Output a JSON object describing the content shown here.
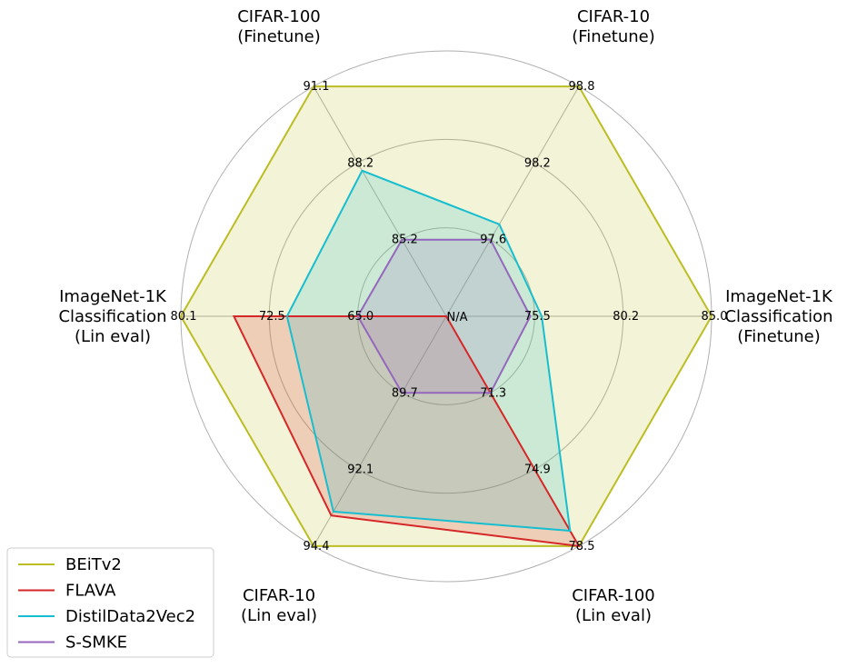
{
  "chart_data": {
    "type": "radar",
    "axes": [
      {
        "label": [
          "ImageNet-1K",
          "Classification",
          "(Finetune)"
        ],
        "ticks": [
          "75.5",
          "80.2",
          "85.0"
        ]
      },
      {
        "label": [
          "CIFAR-10",
          "(Finetune)"
        ],
        "ticks": [
          "97.6",
          "98.2",
          "98.8"
        ]
      },
      {
        "label": [
          "CIFAR-100",
          "(Finetune)"
        ],
        "ticks": [
          "85.2",
          "88.2",
          "91.1"
        ]
      },
      {
        "label": [
          "ImageNet-1K",
          "Classification",
          "(Lin eval)"
        ],
        "ticks": [
          "65.0",
          "72.5",
          "80.1"
        ]
      },
      {
        "label": [
          "CIFAR-10",
          "(Lin eval)"
        ],
        "ticks": [
          "89.7",
          "92.1",
          "94.4"
        ]
      },
      {
        "label": [
          "CIFAR-100",
          "(Lin eval)"
        ],
        "ticks": [
          "71.3",
          "74.9",
          "78.5"
        ]
      }
    ],
    "center_label": "N/A",
    "scale_radii": [
      1,
      2,
      3
    ],
    "series": [
      {
        "name": "BEiTv2",
        "color": "#bcbd22",
        "values": [
          3.0,
          3.0,
          3.0,
          3.0,
          3.0,
          3.0
        ]
      },
      {
        "name": "FLAVA",
        "color": "#d62728",
        "values": [
          0.0,
          0.0,
          0.0,
          2.4,
          2.6,
          3.0
        ]
      },
      {
        "name": "DistilData2Vec2",
        "color": "#17becf",
        "values": [
          1.08,
          1.2,
          1.9,
          1.8,
          2.55,
          2.8
        ]
      },
      {
        "name": "S-SMKE",
        "color": "#9467bd",
        "values": [
          0.95,
          1.0,
          1.0,
          1.0,
          1.0,
          1.0
        ]
      }
    ],
    "legend": "lower-left",
    "grid": true
  }
}
